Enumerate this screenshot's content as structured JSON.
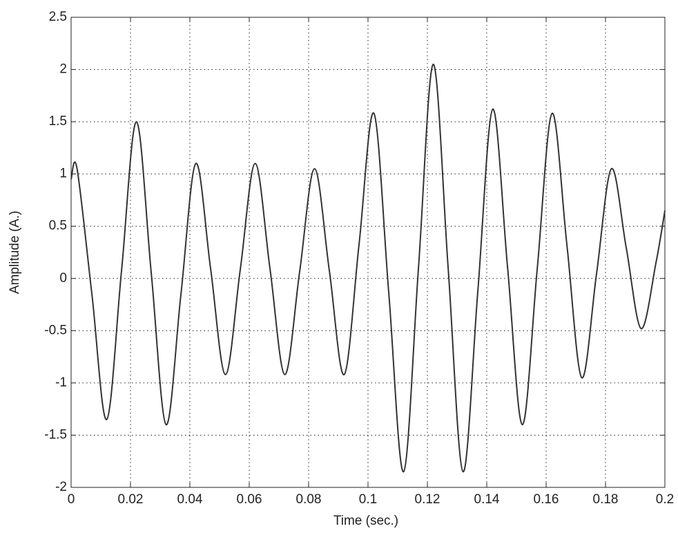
{
  "chart_data": {
    "type": "line",
    "xlabel": "Time (sec.)",
    "ylabel": "Amplitude (A.)",
    "x": [
      0,
      0.002,
      0.007,
      0.012,
      0.017,
      0.022,
      0.027,
      0.032,
      0.037,
      0.042,
      0.047,
      0.052,
      0.057,
      0.062,
      0.067,
      0.072,
      0.077,
      0.082,
      0.087,
      0.092,
      0.097,
      0.102,
      0.107,
      0.112,
      0.117,
      0.122,
      0.127,
      0.132,
      0.137,
      0.142,
      0.147,
      0.152,
      0.157,
      0.162,
      0.167,
      0.172,
      0.177,
      0.182,
      0.187,
      0.192,
      0.197,
      0.2
    ],
    "series": [
      {
        "color": "#333333",
        "values": [
          0.95,
          1.05,
          -0.15,
          -1.35,
          0.08,
          1.5,
          0.05,
          -1.4,
          -0.15,
          1.1,
          0.09,
          -0.92,
          0.09,
          1.1,
          0.09,
          -0.92,
          0.07,
          1.05,
          0.07,
          -0.92,
          0.33,
          1.58,
          -0.14,
          -1.85,
          0.1,
          2.05,
          0.1,
          -1.85,
          -0.12,
          1.62,
          0.11,
          -1.4,
          0.09,
          1.58,
          0.32,
          -0.95,
          0.05,
          1.05,
          0.29,
          -0.48,
          0.15,
          0.65
        ]
      }
    ],
    "xlim": [
      0,
      0.2
    ],
    "xticks": [
      0,
      0.02,
      0.04,
      0.06,
      0.08,
      0.1,
      0.12,
      0.14,
      0.16,
      0.18,
      0.2
    ],
    "ylim": [
      -2,
      2.5
    ],
    "yticks": [
      -2,
      -1.5,
      -1,
      -0.5,
      0,
      0.5,
      1,
      1.5,
      2,
      2.5
    ],
    "grid": true
  }
}
